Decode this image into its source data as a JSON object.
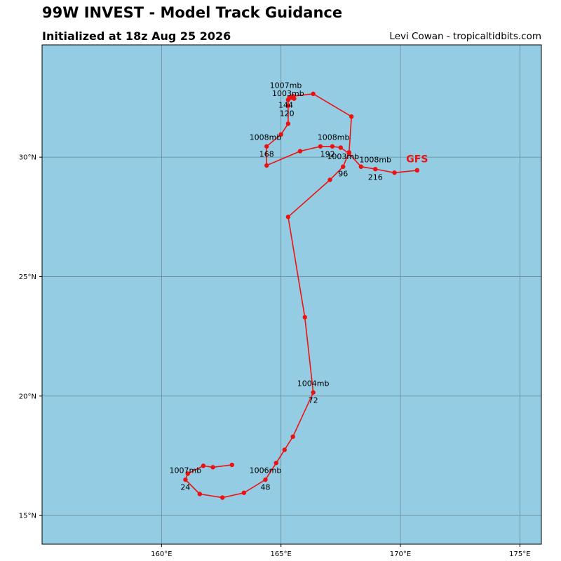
{
  "header": {
    "title": "99W INVEST - Model Track Guidance",
    "subtitle": "Initialized at 18z Aug 25 2026",
    "credit": "Levi Cowan - tropicaltidbits.com"
  },
  "chart_data": {
    "type": "line",
    "title": "99W INVEST - Model Track Guidance",
    "subtitle": "Initialized at 18z Aug 25 2026",
    "xlim": [
      155.0,
      175.9
    ],
    "ylim": [
      13.8,
      34.7
    ],
    "x_ticks": [
      160,
      165,
      170,
      175
    ],
    "x_tick_labels": [
      "160°E",
      "165°E",
      "170°E",
      "175°E"
    ],
    "y_ticks": [
      15,
      20,
      25,
      30
    ],
    "y_tick_labels": [
      "15°N",
      "20°N",
      "25°N",
      "30°N"
    ],
    "grid": true,
    "colors": {
      "ocean": "#94cde3",
      "track": "#ee1111",
      "grid": "#6a8a95"
    },
    "series": [
      {
        "name": "GFS",
        "color": "#ee1111",
        "points": [
          [
            162.95,
            17.12
          ],
          [
            162.15,
            17.02
          ],
          [
            161.75,
            17.08
          ],
          [
            161.1,
            16.75
          ],
          [
            161.0,
            16.5
          ],
          [
            161.6,
            15.9
          ],
          [
            162.55,
            15.75
          ],
          [
            163.45,
            15.95
          ],
          [
            164.35,
            16.5
          ],
          [
            164.8,
            17.2
          ],
          [
            165.15,
            17.75
          ],
          [
            165.5,
            18.3
          ],
          [
            166.35,
            20.15
          ],
          [
            166.0,
            23.3
          ],
          [
            165.3,
            27.5
          ],
          [
            167.05,
            29.05
          ],
          [
            167.6,
            29.6
          ],
          [
            167.85,
            30.2
          ],
          [
            167.95,
            31.7
          ],
          [
            166.35,
            32.65
          ],
          [
            165.5,
            32.55
          ],
          [
            165.35,
            32.5
          ],
          [
            165.55,
            32.45
          ],
          [
            165.3,
            32.4
          ],
          [
            165.3,
            32.15
          ],
          [
            165.3,
            31.4
          ],
          [
            165.0,
            30.95
          ],
          [
            164.4,
            30.45
          ],
          [
            164.4,
            29.65
          ],
          [
            165.8,
            30.25
          ],
          [
            166.65,
            30.45
          ],
          [
            167.15,
            30.45
          ],
          [
            167.5,
            30.4
          ],
          [
            167.85,
            30.15
          ],
          [
            168.35,
            29.6
          ],
          [
            168.95,
            29.5
          ],
          [
            169.75,
            29.35
          ],
          [
            170.7,
            29.45
          ]
        ]
      }
    ],
    "pressure_labels": [
      {
        "text": "1007mb",
        "lon": 165.2,
        "lat": 32.9
      },
      {
        "text": "1003mb",
        "lon": 165.3,
        "lat": 32.55
      },
      {
        "text": "1008mb",
        "lon": 164.35,
        "lat": 30.72
      },
      {
        "text": "1008mb",
        "lon": 167.2,
        "lat": 30.72
      },
      {
        "text": "1003mb",
        "lon": 167.6,
        "lat": 29.92
      },
      {
        "text": "1008mb",
        "lon": 168.95,
        "lat": 29.78
      },
      {
        "text": "1004mb",
        "lon": 166.35,
        "lat": 20.42
      },
      {
        "text": "1007mb",
        "lon": 161.0,
        "lat": 16.78
      },
      {
        "text": "1006mb",
        "lon": 164.35,
        "lat": 16.78
      }
    ],
    "hour_labels": [
      {
        "text": "144",
        "lon": 165.2,
        "lat": 32.08
      },
      {
        "text": "120",
        "lon": 165.25,
        "lat": 31.72
      },
      {
        "text": "168",
        "lon": 164.4,
        "lat": 30.02
      },
      {
        "text": "192",
        "lon": 166.95,
        "lat": 30.02
      },
      {
        "text": "96",
        "lon": 167.6,
        "lat": 29.2
      },
      {
        "text": "216",
        "lon": 168.95,
        "lat": 29.05
      },
      {
        "text": "72",
        "lon": 166.35,
        "lat": 19.72
      },
      {
        "text": "24",
        "lon": 161.0,
        "lat": 16.08
      },
      {
        "text": "48",
        "lon": 164.35,
        "lat": 16.08
      }
    ],
    "model_label": {
      "text": "GFS",
      "lon": 170.7,
      "lat": 29.78,
      "color": "#ee1111"
    }
  }
}
